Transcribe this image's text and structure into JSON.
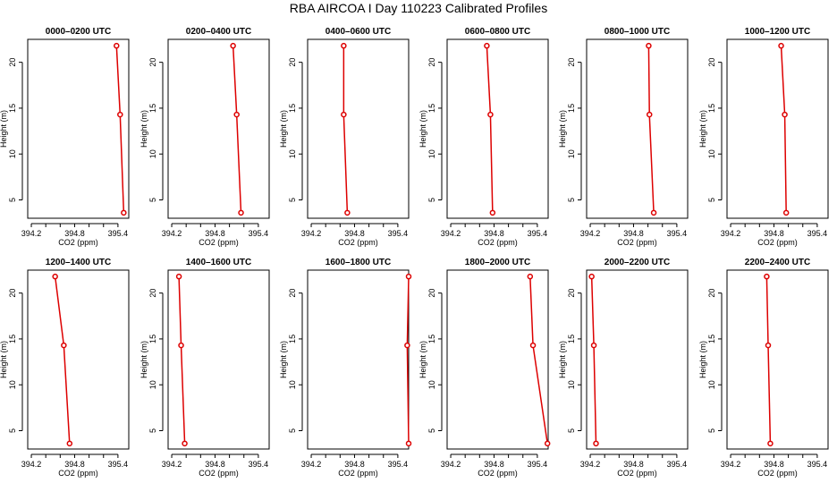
{
  "title": "RBA AIRCOA I  Day 110223  Calibrated Profiles",
  "chart_data": {
    "type": "line",
    "xlabel": "CO2 (ppm)",
    "ylabel": "Height (m)",
    "xlim": [
      394.15,
      395.55
    ],
    "ylim": [
      3,
      22.5
    ],
    "xticks": [
      394.2,
      394.8,
      395.4
    ],
    "xtick_labels": [
      "394.2",
      "394.8",
      "395.4"
    ],
    "yticks": [
      5,
      10,
      15,
      20
    ],
    "ytick_labels": [
      "5",
      "10",
      "15",
      "20"
    ],
    "heights": [
      3.6,
      14.3,
      21.8
    ],
    "color": "#dd0000",
    "panels": [
      {
        "title": "0000–0200 UTC",
        "co2": [
          395.48,
          395.43,
          395.38
        ]
      },
      {
        "title": "0200–0400 UTC",
        "co2": [
          395.16,
          395.1,
          395.05
        ]
      },
      {
        "title": "0400–0600 UTC",
        "co2": [
          394.7,
          394.65,
          394.65
        ]
      },
      {
        "title": "0600–0800 UTC",
        "co2": [
          394.78,
          394.75,
          394.7
        ]
      },
      {
        "title": "0800–1000 UTC",
        "co2": [
          395.08,
          395.02,
          395.01
        ]
      },
      {
        "title": "1000–1200 UTC",
        "co2": [
          394.97,
          394.95,
          394.9
        ]
      },
      {
        "title": "1200–1400 UTC",
        "co2": [
          394.73,
          394.65,
          394.53
        ]
      },
      {
        "title": "1400–1600 UTC",
        "co2": [
          394.38,
          394.33,
          394.3
        ]
      },
      {
        "title": "1600–1800 UTC",
        "co2": [
          395.55,
          395.53,
          395.55
        ]
      },
      {
        "title": "1800–2000 UTC",
        "co2": [
          395.54,
          395.34,
          395.3
        ]
      },
      {
        "title": "2000–2200 UTC",
        "co2": [
          394.28,
          394.25,
          394.22
        ]
      },
      {
        "title": "2200–2400 UTC",
        "co2": [
          394.75,
          394.72,
          394.7
        ]
      }
    ]
  }
}
